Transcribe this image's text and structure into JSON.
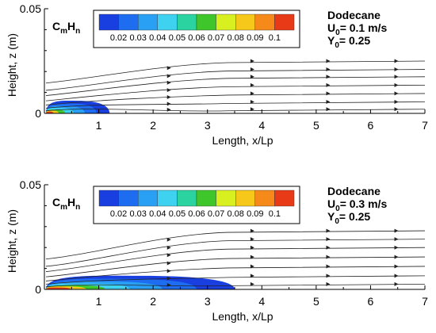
{
  "chart_data": [
    {
      "type": "heatmap",
      "species_label": "C",
      "species_sub_m": "m",
      "species_h": "H",
      "species_sub_n": "n",
      "colorbar_ticks": [
        "0.02",
        "0.03",
        "0.04",
        "0.05",
        "0.06",
        "0.07",
        "0.08",
        "0.09",
        "0.1"
      ],
      "colorbar_colors": [
        "#1a3fe0",
        "#1e6cf0",
        "#2aa0f5",
        "#3fd2f0",
        "#2bd3a0",
        "#3ec62a",
        "#d8ef20",
        "#f5c81a",
        "#f58a1a",
        "#e93a18"
      ],
      "fuel": "Dodecane",
      "u0_text": "= 0.1 m/s",
      "y0_text": "= 0.25",
      "u_sym": "U",
      "y_sym": "Y",
      "zero_sub": "0",
      "ylabel": "Height, z (m)",
      "xlabel": "Length, x/Lp",
      "ytick_labels": [
        "0.05",
        "0"
      ],
      "xtick_labels": [
        "1",
        "2",
        "3",
        "4",
        "5",
        "6",
        "7"
      ],
      "xlim": [
        0,
        7
      ],
      "ylim": [
        0,
        0.05
      ],
      "plume_extent_x": 1.2,
      "plume_height_z": 0.006,
      "streamline_start_z": [
        0.0145,
        0.011,
        0.0085,
        0.006,
        0.004,
        0.0025,
        0.0012
      ],
      "streamline_end_z": [
        0.025,
        0.021,
        0.0175,
        0.0135,
        0.0095,
        0.0055,
        0.002
      ]
    },
    {
      "type": "heatmap",
      "species_label": "C",
      "species_sub_m": "m",
      "species_h": "H",
      "species_sub_n": "n",
      "colorbar_ticks": [
        "0.02",
        "0.03",
        "0.04",
        "0.05",
        "0.06",
        "0.07",
        "0.08",
        "0.09",
        "0.1"
      ],
      "colorbar_colors": [
        "#1a3fe0",
        "#1e6cf0",
        "#2aa0f5",
        "#3fd2f0",
        "#2bd3a0",
        "#3ec62a",
        "#d8ef20",
        "#f5c81a",
        "#f58a1a",
        "#e93a18"
      ],
      "fuel": "Dodecane",
      "u0_text": "= 0.3 m/s",
      "y0_text": "= 0.25",
      "u_sym": "U",
      "y_sym": "Y",
      "zero_sub": "0",
      "ylabel": "Height, z (m)",
      "xlabel": "Length, x/Lp",
      "ytick_labels": [
        "0.05",
        "0"
      ],
      "xtick_labels": [
        "1",
        "2",
        "3",
        "4",
        "5",
        "6",
        "7"
      ],
      "xlim": [
        0,
        7
      ],
      "ylim": [
        0,
        0.05
      ],
      "plume_extent_x": 3.5,
      "plume_height_z": 0.0065,
      "streamline_start_z": [
        0.0145,
        0.011,
        0.0085,
        0.006,
        0.004,
        0.0025,
        0.0012
      ],
      "streamline_end_z": [
        0.028,
        0.024,
        0.02,
        0.0155,
        0.011,
        0.0065,
        0.0025
      ]
    }
  ]
}
